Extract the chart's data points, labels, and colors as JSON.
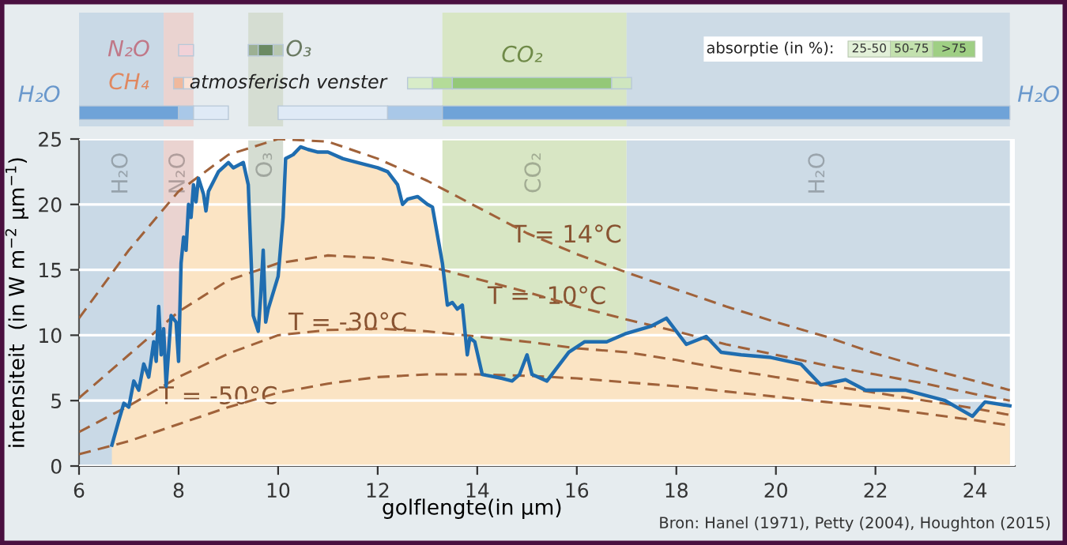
{
  "chart_data": [
    {
      "type": "area",
      "xlabel": "golflengte(in µm)",
      "ylabel": "intensiteit  (in W m$^{−2}$ µm$^{−1}$)",
      "xlim": [
        6,
        24.8
      ],
      "ylim": [
        0,
        25
      ],
      "xticks": [
        6,
        8,
        10,
        12,
        14,
        16,
        18,
        20,
        22,
        24
      ],
      "yticks": [
        0,
        5,
        10,
        15,
        20,
        25
      ],
      "grid": "y",
      "bands": [
        {
          "axis": "x",
          "from": 6,
          "to": 7.7,
          "label": "H₂O",
          "color": "#c9d9e6"
        },
        {
          "axis": "x",
          "from": 7.7,
          "to": 8.3,
          "label": "N₂O",
          "color": "#ead3d0"
        },
        {
          "axis": "x",
          "from": 9.4,
          "to": 10.1,
          "label": "O₃",
          "color": "#d5ddd2"
        },
        {
          "axis": "x",
          "from": 13.3,
          "to": 17,
          "label": "CO₂",
          "color": "#d8e6c4"
        },
        {
          "axis": "x",
          "from": 17,
          "to": 24.7,
          "label": "H₂O",
          "color": "#cddbe6"
        }
      ],
      "series": [
        {
          "type": "area",
          "color": "#fbe4c4",
          "x": [
            6.66,
            6.8,
            6.9,
            7.0,
            7.1,
            7.2,
            7.3,
            7.4,
            7.5,
            7.55,
            7.6,
            7.65,
            7.7,
            7.75,
            7.85,
            7.95,
            8.0,
            8.05,
            8.1,
            8.15,
            8.2,
            8.25,
            8.3,
            8.35,
            8.4,
            8.5,
            8.55,
            8.6,
            8.8,
            9.0,
            9.1,
            9.3,
            9.4,
            9.5,
            9.6,
            9.65,
            9.7,
            9.75,
            9.8,
            10.0,
            10.1,
            10.15,
            10.3,
            10.45,
            10.6,
            10.8,
            11.0,
            11.3,
            11.6,
            12.0,
            12.2,
            12.4,
            12.5,
            12.6,
            12.8,
            13.0,
            13.1,
            13.3,
            13.4,
            13.5,
            13.6,
            13.7,
            13.8,
            13.85,
            13.95,
            14.1,
            14.5,
            14.7,
            14.85,
            15.0,
            15.1,
            15.4,
            15.84,
            16.16,
            16.6,
            16.97,
            17.5,
            17.8,
            18.2,
            18.6,
            18.9,
            19.3,
            19.9,
            20.5,
            20.9,
            21.4,
            21.8,
            22.6,
            23.4,
            23.95,
            24.2,
            24.7
          ],
          "values": [
            1.6,
            3.5,
            4.8,
            4.5,
            6.5,
            5.8,
            7.8,
            6.8,
            9.5,
            8.0,
            12.2,
            8.5,
            10.5,
            6.1,
            11.5,
            11.0,
            8.0,
            15.5,
            17.5,
            16.5,
            20.0,
            19.0,
            21.5,
            20.2,
            22.0,
            20.8,
            19.5,
            21.0,
            22.5,
            23.2,
            22.8,
            23.2,
            21.5,
            11.5,
            10.3,
            13.0,
            16.5,
            11.0,
            12.0,
            14.5,
            19.0,
            23.5,
            23.8,
            24.4,
            24.2,
            24.0,
            24.0,
            23.5,
            23.2,
            22.8,
            22.5,
            21.5,
            20.0,
            20.4,
            20.6,
            20.0,
            19.8,
            15.5,
            12.3,
            12.5,
            12.0,
            12.3,
            8.5,
            9.8,
            9.5,
            7.0,
            6.7,
            6.5,
            7.0,
            8.5,
            7.0,
            6.5,
            8.7,
            9.5,
            9.5,
            10.1,
            10.7,
            11.3,
            9.3,
            9.9,
            8.7,
            8.5,
            8.3,
            7.8,
            6.2,
            6.6,
            5.8,
            5.8,
            5.0,
            3.8,
            4.9,
            4.6
          ]
        },
        {
          "type": "line",
          "color": "#1f6db0",
          "x": [
            6.66,
            6.8,
            6.9,
            7.0,
            7.1,
            7.2,
            7.3,
            7.4,
            7.5,
            7.55,
            7.6,
            7.65,
            7.7,
            7.75,
            7.85,
            7.95,
            8.0,
            8.05,
            8.1,
            8.15,
            8.2,
            8.25,
            8.3,
            8.35,
            8.4,
            8.5,
            8.55,
            8.6,
            8.8,
            9.0,
            9.1,
            9.3,
            9.4,
            9.5,
            9.6,
            9.65,
            9.7,
            9.75,
            9.8,
            10.0,
            10.1,
            10.15,
            10.3,
            10.45,
            10.6,
            10.8,
            11.0,
            11.3,
            11.6,
            12.0,
            12.2,
            12.4,
            12.5,
            12.6,
            12.8,
            13.0,
            13.1,
            13.3,
            13.4,
            13.5,
            13.6,
            13.7,
            13.8,
            13.85,
            13.95,
            14.1,
            14.5,
            14.7,
            14.85,
            15.0,
            15.1,
            15.4,
            15.84,
            16.16,
            16.6,
            16.97,
            17.5,
            17.8,
            18.2,
            18.6,
            18.9,
            19.3,
            19.9,
            20.5,
            20.9,
            21.4,
            21.8,
            22.6,
            23.4,
            23.95,
            24.2,
            24.7
          ],
          "values": [
            1.6,
            3.5,
            4.8,
            4.5,
            6.5,
            5.8,
            7.8,
            6.8,
            9.5,
            8.0,
            12.2,
            8.5,
            10.5,
            6.1,
            11.5,
            11.0,
            8.0,
            15.5,
            17.5,
            16.5,
            20.0,
            19.0,
            21.5,
            20.2,
            22.0,
            20.8,
            19.5,
            21.0,
            22.5,
            23.2,
            22.8,
            23.2,
            21.5,
            11.5,
            10.3,
            13.0,
            16.5,
            11.0,
            12.0,
            14.5,
            19.0,
            23.5,
            23.8,
            24.4,
            24.2,
            24.0,
            24.0,
            23.5,
            23.2,
            22.8,
            22.5,
            21.5,
            20.0,
            20.4,
            20.6,
            20.0,
            19.8,
            15.5,
            12.3,
            12.5,
            12.0,
            12.3,
            8.5,
            9.8,
            9.5,
            7.0,
            6.7,
            6.5,
            7.0,
            8.5,
            7.0,
            6.5,
            8.7,
            9.5,
            9.5,
            10.1,
            10.7,
            11.3,
            9.3,
            9.9,
            8.7,
            8.5,
            8.3,
            7.8,
            6.2,
            6.6,
            5.8,
            5.8,
            5.0,
            3.8,
            4.9,
            4.6
          ]
        },
        {
          "type": "line",
          "name": "T = 14°C",
          "line_style": "dashed",
          "color": "#a0623a",
          "x": [
            6,
            7,
            8,
            9,
            10,
            11,
            12,
            13,
            14,
            15,
            16,
            17,
            18,
            19,
            20,
            21,
            22,
            23,
            24,
            24.7
          ],
          "values": [
            11.3,
            16.5,
            21.0,
            23.8,
            25.0,
            24.8,
            23.5,
            21.8,
            19.8,
            17.8,
            16.2,
            14.8,
            13.5,
            12.2,
            11.0,
            9.9,
            8.6,
            7.5,
            6.5,
            5.8
          ]
        },
        {
          "type": "line",
          "name": "T = -10°C",
          "line_style": "dashed",
          "color": "#a0623a",
          "x": [
            6,
            7,
            8,
            9,
            10,
            11,
            12,
            13,
            14,
            15,
            16,
            17,
            18,
            19,
            20,
            21,
            22,
            23,
            24,
            24.7
          ],
          "values": [
            5.2,
            8.5,
            11.8,
            14.2,
            15.5,
            16.1,
            15.9,
            15.3,
            14.3,
            13.3,
            12.2,
            11.2,
            10.3,
            9.3,
            8.5,
            7.7,
            7.0,
            6.3,
            5.5,
            5.0
          ]
        },
        {
          "type": "line",
          "name": "T = -30°C",
          "line_style": "dashed",
          "color": "#a0623a",
          "x": [
            6,
            7,
            8,
            9,
            10,
            11,
            12,
            13,
            14,
            15,
            16,
            17,
            18,
            19,
            20,
            21,
            22,
            23,
            24,
            24.7
          ],
          "values": [
            2.6,
            4.6,
            6.8,
            8.6,
            10.0,
            10.4,
            10.5,
            10.3,
            9.9,
            9.5,
            9.0,
            8.7,
            8.1,
            7.4,
            6.8,
            6.2,
            5.6,
            5.0,
            4.4,
            3.9
          ]
        },
        {
          "type": "line",
          "name": "T = -50°C",
          "line_style": "dashed",
          "color": "#a0623a",
          "x": [
            6,
            7,
            8,
            9,
            10,
            11,
            12,
            13,
            14,
            15,
            16,
            17,
            18,
            19,
            20,
            21,
            22,
            23,
            24,
            24.7
          ],
          "values": [
            0.9,
            1.9,
            3.2,
            4.5,
            5.6,
            6.3,
            6.8,
            7.0,
            7.0,
            6.9,
            6.7,
            6.4,
            6.1,
            5.7,
            5.3,
            4.9,
            4.5,
            4.0,
            3.5,
            3.1
          ]
        }
      ],
      "annotations": [
        "Bron: Hanel (1971), Petty (2004), Houghton (2015)"
      ]
    },
    {
      "type": "other",
      "annotations": [
        "H₂O",
        "N₂O",
        "CH₄",
        "O₃",
        "atmosferisch venster",
        "CO₂",
        "H₂O",
        "absorptie (in %):",
        "25-50",
        "50-75",
        ">75"
      ]
    }
  ]
}
